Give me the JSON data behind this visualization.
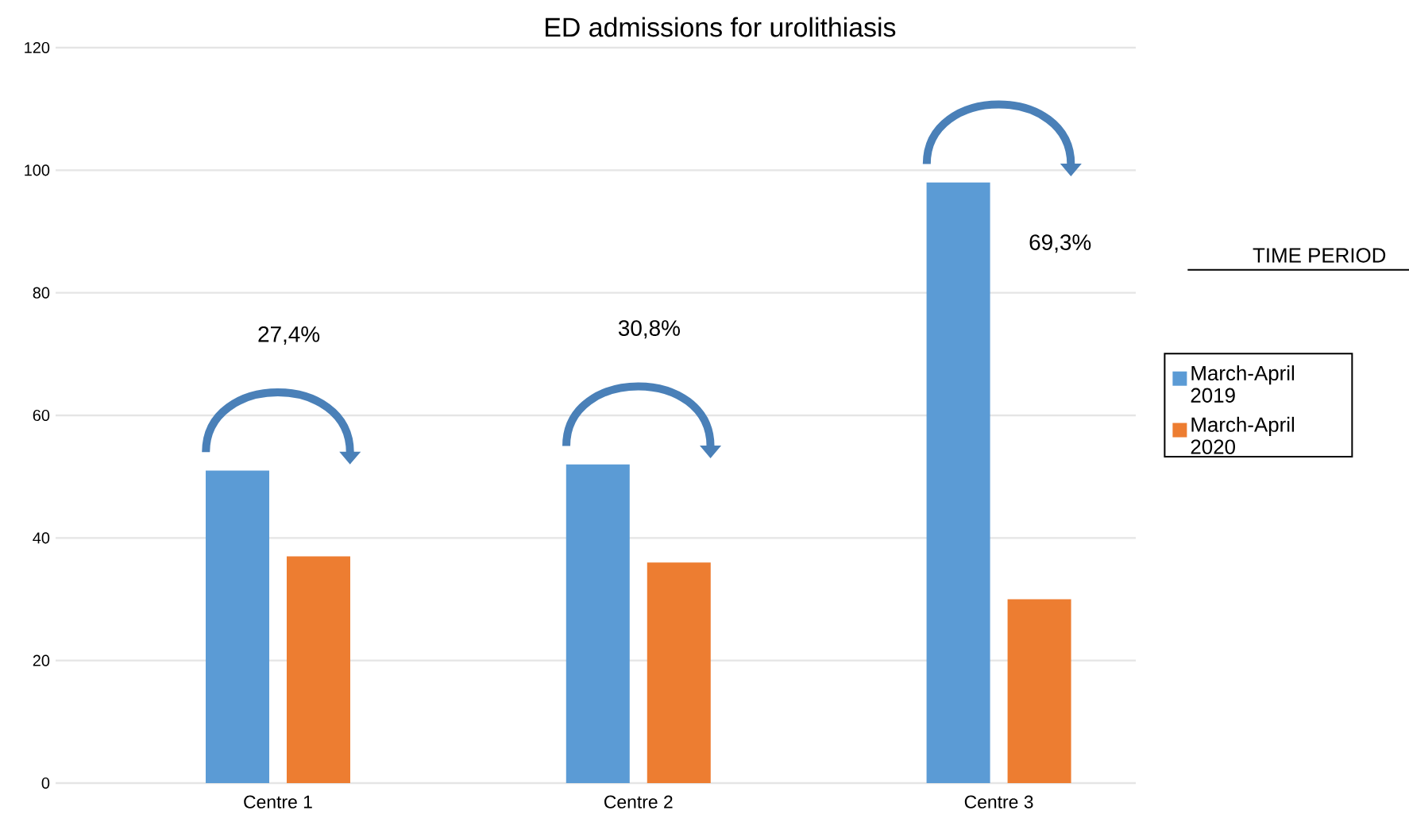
{
  "chart_data": {
    "type": "bar",
    "title": "ED admissions for urolithiasis",
    "legend_title": "TIME PERIOD",
    "categories": [
      "Centre 1",
      "Centre 2",
      "Centre 3"
    ],
    "series": [
      {
        "name": "March-April 2019",
        "color": "#5b9bd5",
        "values": [
          51,
          52,
          98
        ]
      },
      {
        "name": "March-April 2020",
        "color": "#ed7d31",
        "values": [
          37,
          36,
          30
        ]
      }
    ],
    "annotations": [
      "27,4%",
      "30,8%",
      "69,3%"
    ],
    "ylim": [
      0,
      120
    ],
    "yticks": [
      0,
      20,
      40,
      60,
      80,
      100,
      120
    ],
    "grid": "y",
    "legend": "right"
  }
}
